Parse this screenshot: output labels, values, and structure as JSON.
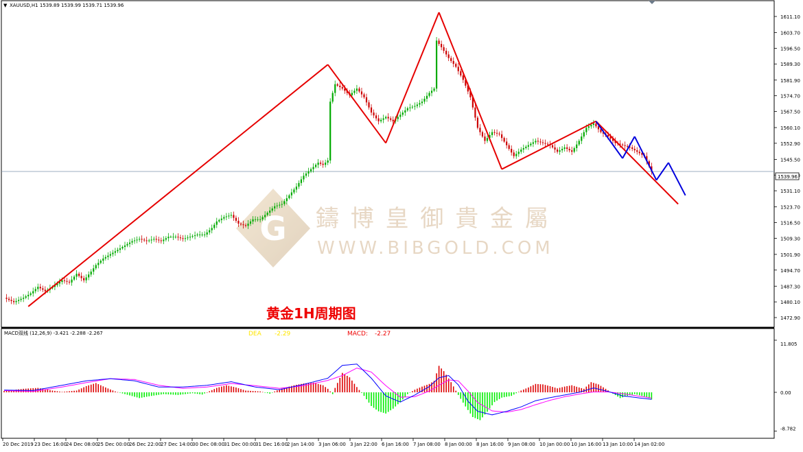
{
  "header": {
    "symbol_info": "XAUUSD,H1  1539.89 1539.99 1539.71 1539.96"
  },
  "annotation": {
    "caption": "黄金1H周期图",
    "watermark_cn": "鑄 博 皇 御 貴 金 屬",
    "watermark_url": "WWW.BIBGOLD.COM"
  },
  "colors": {
    "bull_candle": "#00aa00",
    "bear_candle": "#cc0000",
    "trendline_red": "#e60000",
    "trendline_blue": "#0000dd",
    "macd_pos": "#dd0000",
    "macd_neg": "#00ee00",
    "macd_line": "#0000ff",
    "signal_line": "#ff00ff",
    "price_line": "#7e93ad"
  },
  "chart_data": [
    {
      "type": "candlestick",
      "title": "XAUUSD,H1",
      "ylim": [
        1472.9,
        1611.1
      ],
      "yticks": [
        "1611.10",
        "1603.70",
        "1596.50",
        "1589.30",
        "1581.90",
        "1574.70",
        "1567.50",
        "1560.10",
        "1552.90",
        "1545.50",
        "1538.30",
        "1531.10",
        "1523.70",
        "1516.50",
        "1509.30",
        "1501.90",
        "1494.70",
        "1487.30",
        "1480.10",
        "1472.90"
      ],
      "xticks": [
        "20 Dec 2019",
        "23 Dec 16:00",
        "24 Dec 08:00",
        "25 Dec 00:00",
        "26 Dec 22:00",
        "27 Dec 14:00",
        "30 Dec 08:00",
        "31 Dec 00:00",
        "31 Dec 16:00",
        "2 Jan 14:00",
        "3 Jan 06:00",
        "3 Jan 22:00",
        "6 Jan 16:00",
        "7 Jan 08:00",
        "8 Jan 00:00",
        "8 Jan 16:00",
        "9 Jan 08:00",
        "10 Jan 00:00",
        "10 Jan 16:00",
        "13 Jan 10:00",
        "14 Jan 02:00"
      ],
      "current_price": "1539.96",
      "close_path": [
        [
          0,
          1482
        ],
        [
          4,
          1480
        ],
        [
          8,
          1482
        ],
        [
          11,
          1484
        ],
        [
          14,
          1487
        ],
        [
          17,
          1485
        ],
        [
          20,
          1487
        ],
        [
          24,
          1490
        ],
        [
          27,
          1489
        ],
        [
          30,
          1493
        ],
        [
          33,
          1490
        ],
        [
          36,
          1494
        ],
        [
          38,
          1497
        ],
        [
          41,
          1500
        ],
        [
          44,
          1502
        ],
        [
          47,
          1504
        ],
        [
          50,
          1506
        ],
        [
          53,
          1508
        ],
        [
          56,
          1509
        ],
        [
          59,
          1508
        ],
        [
          62,
          1509
        ],
        [
          65,
          1508
        ],
        [
          68,
          1510
        ],
        [
          71,
          1510
        ],
        [
          74,
          1509
        ],
        [
          77,
          1510
        ],
        [
          80,
          1511
        ],
        [
          83,
          1511
        ],
        [
          86,
          1514
        ],
        [
          88,
          1517
        ],
        [
          91,
          1519
        ],
        [
          94,
          1520
        ],
        [
          97,
          1516
        ],
        [
          100,
          1515
        ],
        [
          103,
          1518
        ],
        [
          106,
          1518
        ],
        [
          109,
          1521
        ],
        [
          112,
          1524
        ],
        [
          115,
          1525
        ],
        [
          118,
          1529
        ],
        [
          121,
          1533
        ],
        [
          124,
          1538
        ],
        [
          127,
          1541
        ],
        [
          130,
          1544
        ],
        [
          132,
          1543
        ],
        [
          134,
          1545
        ],
        [
          135,
          1572
        ],
        [
          137,
          1580
        ],
        [
          140,
          1578
        ],
        [
          143,
          1575
        ],
        [
          146,
          1578
        ],
        [
          149,
          1574
        ],
        [
          152,
          1567
        ],
        [
          155,
          1563
        ],
        [
          158,
          1565
        ],
        [
          161,
          1563
        ],
        [
          164,
          1566
        ],
        [
          167,
          1569
        ],
        [
          170,
          1570
        ],
        [
          173,
          1572
        ],
        [
          176,
          1576
        ],
        [
          178,
          1578
        ],
        [
          179,
          1600
        ],
        [
          181,
          1597
        ],
        [
          184,
          1592
        ],
        [
          187,
          1588
        ],
        [
          190,
          1582
        ],
        [
          193,
          1574
        ],
        [
          196,
          1560
        ],
        [
          199,
          1554
        ],
        [
          202,
          1558
        ],
        [
          205,
          1557
        ],
        [
          208,
          1552
        ],
        [
          211,
          1547
        ],
        [
          214,
          1550
        ],
        [
          217,
          1552
        ],
        [
          220,
          1554
        ],
        [
          223,
          1553
        ],
        [
          226,
          1552
        ],
        [
          229,
          1549
        ],
        [
          232,
          1551
        ],
        [
          235,
          1549
        ],
        [
          238,
          1554
        ],
        [
          241,
          1560
        ],
        [
          244,
          1562
        ],
        [
          247,
          1558
        ],
        [
          250,
          1556
        ],
        [
          253,
          1553
        ],
        [
          256,
          1552
        ],
        [
          259,
          1551
        ],
        [
          262,
          1549
        ],
        [
          265,
          1547
        ],
        [
          268,
          1539.96
        ]
      ],
      "trendlines_red": [
        {
          "from": [
            10,
            1478
          ],
          "to": [
            134,
            1589
          ]
        },
        {
          "from": [
            134,
            1589
          ],
          "to": [
            158,
            1553
          ]
        },
        {
          "from": [
            158,
            1553
          ],
          "to": [
            180,
            1613
          ]
        },
        {
          "from": [
            180,
            1613
          ],
          "to": [
            206,
            1541
          ]
        },
        {
          "from": [
            206,
            1541
          ],
          "to": [
            245,
            1563
          ]
        },
        {
          "from": [
            245,
            1563
          ],
          "to": [
            279,
            1525
          ]
        }
      ],
      "trendlines_blue": [
        {
          "from": [
            245,
            1563
          ],
          "to": [
            256,
            1546
          ]
        },
        {
          "from": [
            256,
            1546
          ],
          "to": [
            261,
            1556
          ]
        },
        {
          "from": [
            261,
            1556
          ],
          "to": [
            270,
            1536
          ]
        },
        {
          "from": [
            270,
            1536
          ],
          "to": [
            275,
            1544
          ]
        },
        {
          "from": [
            275,
            1544
          ],
          "to": [
            282,
            1529
          ]
        }
      ]
    },
    {
      "type": "bar",
      "title": "MACD双线 (12,26,9) -3.421 -2.288 -2.267",
      "legend": [
        "DEA",
        "-2.29",
        "MACD:",
        "-2.27"
      ],
      "ylim": [
        -8.782,
        11.805
      ],
      "yticks": [
        "11.805",
        "0.00",
        "-8.782"
      ],
      "histogram_path": [
        [
          0,
          0.3
        ],
        [
          8,
          0.8
        ],
        [
          14,
          1.0
        ],
        [
          20,
          0.4
        ],
        [
          24,
          0.1
        ],
        [
          30,
          0.4
        ],
        [
          34,
          1.4
        ],
        [
          38,
          2.1
        ],
        [
          42,
          1.1
        ],
        [
          46,
          0.2
        ],
        [
          50,
          -0.4
        ],
        [
          56,
          -1.3
        ],
        [
          60,
          -0.9
        ],
        [
          66,
          -0.4
        ],
        [
          72,
          -0.6
        ],
        [
          78,
          -0.2
        ],
        [
          82,
          -0.5
        ],
        [
          88,
          1.0
        ],
        [
          92,
          1.6
        ],
        [
          96,
          1.1
        ],
        [
          100,
          0.4
        ],
        [
          106,
          0.2
        ],
        [
          110,
          -0.3
        ],
        [
          114,
          0.7
        ],
        [
          120,
          1.6
        ],
        [
          124,
          2.0
        ],
        [
          128,
          2.2
        ],
        [
          132,
          1.6
        ],
        [
          134,
          0.8
        ],
        [
          136,
          -0.4
        ],
        [
          137,
          1.0
        ],
        [
          140,
          4.4
        ],
        [
          143,
          3.4
        ],
        [
          146,
          1.2
        ],
        [
          149,
          -0.8
        ],
        [
          152,
          -3.1
        ],
        [
          155,
          -4.3
        ],
        [
          158,
          -4.8
        ],
        [
          161,
          -3.7
        ],
        [
          164,
          -2.2
        ],
        [
          167,
          -0.4
        ],
        [
          170,
          0.6
        ],
        [
          173,
          1.3
        ],
        [
          176,
          1.9
        ],
        [
          178,
          2.6
        ],
        [
          180,
          6.0
        ],
        [
          182,
          4.8
        ],
        [
          185,
          2.3
        ],
        [
          188,
          -0.6
        ],
        [
          191,
          -3.2
        ],
        [
          194,
          -5.6
        ],
        [
          197,
          -6.3
        ],
        [
          200,
          -4.4
        ],
        [
          203,
          -2.2
        ],
        [
          206,
          -1.2
        ],
        [
          210,
          -0.8
        ],
        [
          214,
          0.4
        ],
        [
          217,
          1.1
        ],
        [
          220,
          1.9
        ],
        [
          223,
          1.8
        ],
        [
          226,
          1.4
        ],
        [
          229,
          0.9
        ],
        [
          232,
          1.3
        ],
        [
          235,
          1.6
        ],
        [
          238,
          1.1
        ],
        [
          240,
          0.8
        ],
        [
          243,
          2.3
        ],
        [
          246,
          1.8
        ],
        [
          249,
          0.8
        ],
        [
          252,
          -0.3
        ],
        [
          255,
          -1.3
        ],
        [
          258,
          -0.8
        ],
        [
          261,
          -0.4
        ],
        [
          264,
          -0.8
        ],
        [
          266,
          -1.1
        ],
        [
          268,
          -1.6
        ]
      ],
      "macd_path": [
        [
          0,
          0.5
        ],
        [
          12,
          0.4
        ],
        [
          24,
          1.6
        ],
        [
          34,
          2.6
        ],
        [
          44,
          3.1
        ],
        [
          54,
          2.6
        ],
        [
          64,
          1.2
        ],
        [
          74,
          1.2
        ],
        [
          84,
          1.6
        ],
        [
          94,
          2.4
        ],
        [
          104,
          1.2
        ],
        [
          114,
          0.6
        ],
        [
          124,
          1.8
        ],
        [
          134,
          3.2
        ],
        [
          140,
          6.1
        ],
        [
          146,
          6.4
        ],
        [
          152,
          3.2
        ],
        [
          158,
          -0.8
        ],
        [
          164,
          -2.2
        ],
        [
          170,
          -0.6
        ],
        [
          176,
          1.3
        ],
        [
          180,
          3.3
        ],
        [
          184,
          3.8
        ],
        [
          188,
          1.7
        ],
        [
          192,
          -2.0
        ],
        [
          196,
          -4.3
        ],
        [
          202,
          -5.1
        ],
        [
          208,
          -4.3
        ],
        [
          214,
          -3.3
        ],
        [
          220,
          -1.9
        ],
        [
          226,
          -1.2
        ],
        [
          232,
          -0.6
        ],
        [
          238,
          0.0
        ],
        [
          244,
          1.0
        ],
        [
          250,
          0.2
        ],
        [
          256,
          -0.8
        ],
        [
          262,
          -1.2
        ],
        [
          268,
          -1.6
        ]
      ],
      "signal_path": [
        [
          0,
          0.4
        ],
        [
          12,
          0.2
        ],
        [
          24,
          1.2
        ],
        [
          34,
          2.2
        ],
        [
          44,
          3.1
        ],
        [
          54,
          2.9
        ],
        [
          64,
          1.6
        ],
        [
          74,
          0.9
        ],
        [
          84,
          1.2
        ],
        [
          94,
          2.0
        ],
        [
          104,
          1.5
        ],
        [
          114,
          0.9
        ],
        [
          124,
          1.5
        ],
        [
          134,
          2.7
        ],
        [
          140,
          3.8
        ],
        [
          146,
          5.5
        ],
        [
          152,
          4.6
        ],
        [
          158,
          1.5
        ],
        [
          164,
          -1.1
        ],
        [
          170,
          -1.0
        ],
        [
          176,
          0.3
        ],
        [
          180,
          1.6
        ],
        [
          184,
          2.8
        ],
        [
          188,
          2.6
        ],
        [
          192,
          0.3
        ],
        [
          196,
          -2.3
        ],
        [
          202,
          -4.2
        ],
        [
          208,
          -4.5
        ],
        [
          214,
          -3.9
        ],
        [
          220,
          -2.8
        ],
        [
          226,
          -1.8
        ],
        [
          232,
          -1.0
        ],
        [
          238,
          -0.4
        ],
        [
          244,
          0.1
        ],
        [
          250,
          0.1
        ],
        [
          256,
          -0.3
        ],
        [
          262,
          -0.8
        ],
        [
          268,
          -1.3
        ]
      ]
    }
  ]
}
